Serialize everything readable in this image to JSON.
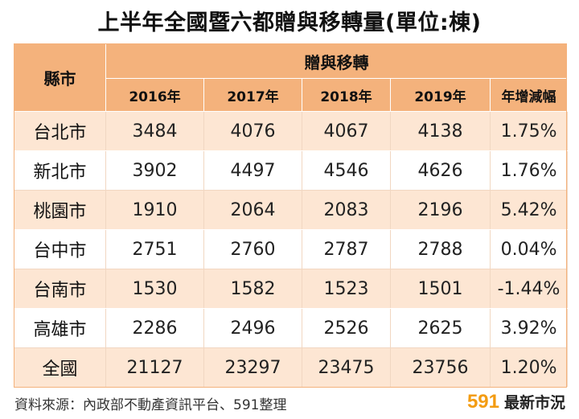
{
  "chart_data": {
    "type": "table",
    "title": "上半年全國暨六都贈與移轉量(單位:棟)",
    "row_header": "縣市",
    "group_header": "贈與移轉",
    "columns": [
      "2016年",
      "2017年",
      "2018年",
      "2019年",
      "年增減幅"
    ],
    "rows": [
      {
        "city": "台北市",
        "values": [
          "3484",
          "4076",
          "4067",
          "4138",
          "1.75%"
        ]
      },
      {
        "city": "新北市",
        "values": [
          "3902",
          "4497",
          "4546",
          "4626",
          "1.76%"
        ]
      },
      {
        "city": "桃園市",
        "values": [
          "1910",
          "2064",
          "2083",
          "2196",
          "5.42%"
        ]
      },
      {
        "city": "台中市",
        "values": [
          "2751",
          "2760",
          "2787",
          "2788",
          "0.04%"
        ]
      },
      {
        "city": "台南市",
        "values": [
          "1530",
          "1582",
          "1523",
          "1501",
          "-1.44%"
        ]
      },
      {
        "city": "高雄市",
        "values": [
          "2286",
          "2496",
          "2526",
          "2625",
          "3.92%"
        ]
      },
      {
        "city": "全國",
        "values": [
          "21127",
          "23297",
          "23475",
          "23756",
          "1.20%"
        ]
      }
    ]
  },
  "footer": {
    "source": "資料來源：內政部不動產資訊平台、591整理",
    "brand_number": "591",
    "brand_text": "最新市況"
  },
  "colors": {
    "header": "#f4b27c",
    "band": "#fde6d3",
    "brand": "#f39c12"
  }
}
